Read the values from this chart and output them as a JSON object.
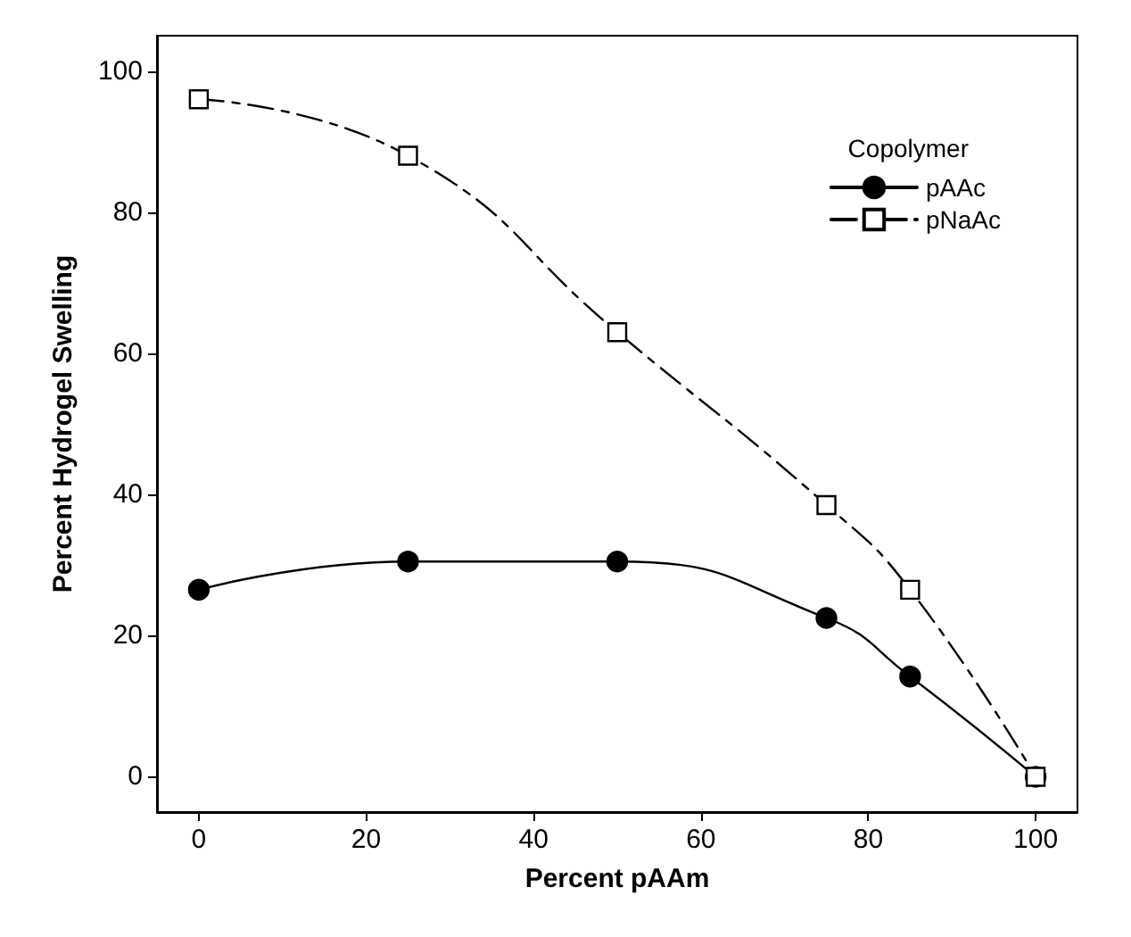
{
  "chart_data": {
    "type": "line",
    "xlabel": "Percent pAAm",
    "ylabel": "Percent Hydrogel Swelling",
    "legend_title": "Copolymer",
    "legend": "top right",
    "grid": false,
    "x": [
      0,
      25,
      50,
      75,
      85,
      100
    ],
    "xlim": [
      -5,
      105
    ],
    "xticks": [
      0,
      20,
      40,
      60,
      80,
      100
    ],
    "ylim": [
      -5,
      105
    ],
    "yticks": [
      0,
      20,
      40,
      60,
      80,
      100
    ],
    "series": [
      {
        "name": "pAAc",
        "color": "#000000",
        "marker": "circle",
        "line_style": "solid",
        "values": [
          26.5,
          30.5,
          30.5,
          22.5,
          14.2,
          0
        ]
      },
      {
        "name": "pNaAc",
        "color": "#000000",
        "marker": "square",
        "line_style": "dashed",
        "values": [
          96,
          88,
          63,
          38.5,
          26.5,
          0
        ]
      }
    ]
  }
}
